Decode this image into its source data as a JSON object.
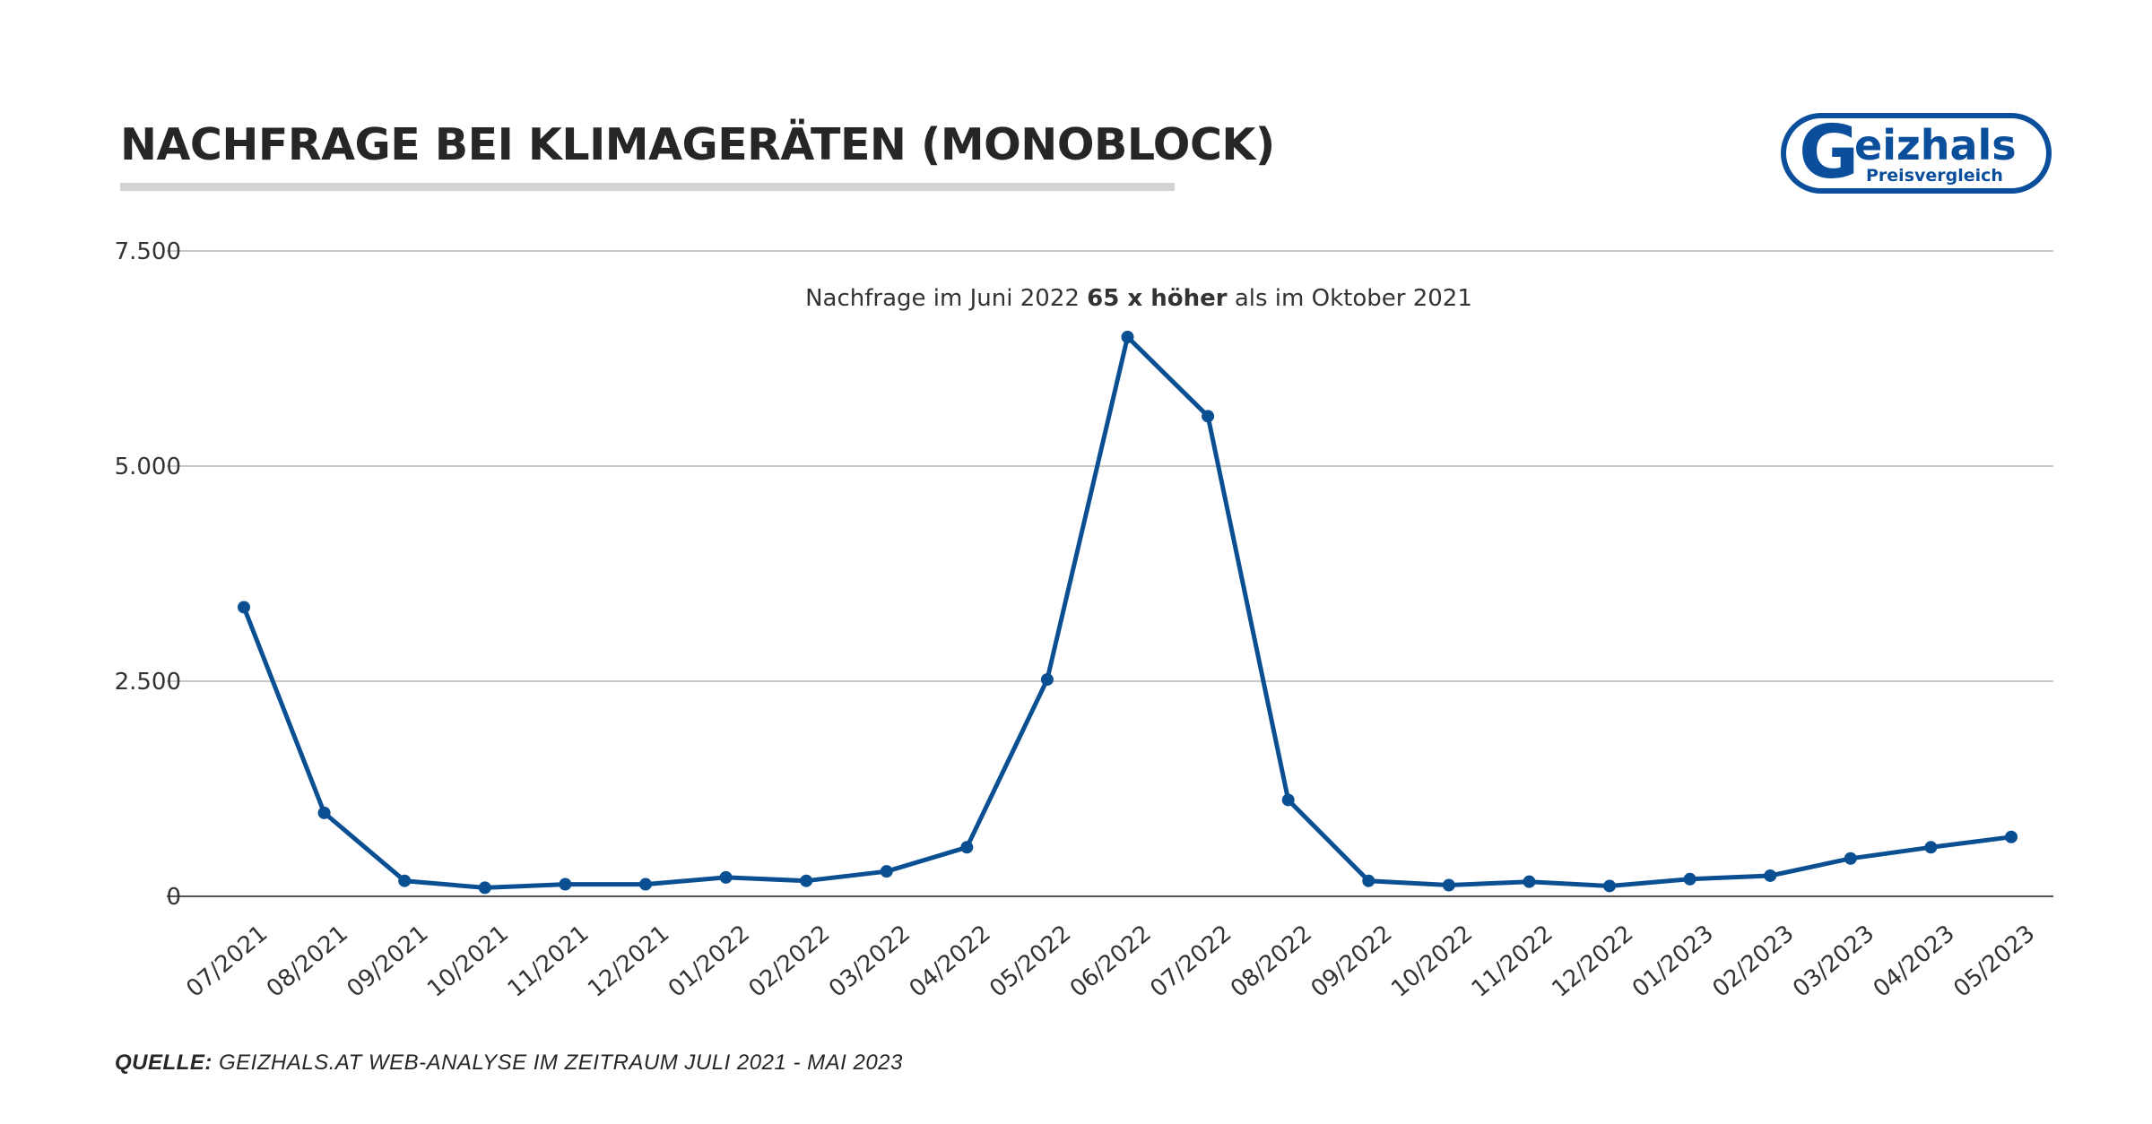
{
  "header": {
    "title": "NACHFRAGE BEI KLIMAGERÄTEN (MONOBLOCK)"
  },
  "logo": {
    "brand": "Geizhals",
    "tagline": "Preisvergleich",
    "color": "#0b4f9c",
    "icon": "geizhals-logo"
  },
  "chart_data": {
    "type": "line",
    "x": [
      "07/2021",
      "08/2021",
      "09/2021",
      "10/2021",
      "11/2021",
      "12/2021",
      "01/2022",
      "02/2022",
      "03/2022",
      "04/2022",
      "05/2022",
      "06/2022",
      "07/2022",
      "08/2022",
      "09/2022",
      "10/2022",
      "11/2022",
      "12/2022",
      "01/2023",
      "02/2023",
      "03/2023",
      "04/2023",
      "05/2023"
    ],
    "series": [
      {
        "values": [
          3360,
          970,
          180,
          100,
          140,
          140,
          220,
          180,
          290,
          570,
          2520,
          6500,
          5580,
          1120,
          180,
          130,
          170,
          120,
          200,
          240,
          440,
          570,
          690
        ],
        "color": "#0b4f93"
      }
    ],
    "ylim": [
      0,
      7500
    ],
    "yticks": [
      0,
      2500,
      5000,
      7500
    ],
    "ytick_labels": [
      "0",
      "2.500",
      "5.000",
      "7.500"
    ],
    "grid": true,
    "annotation": {
      "text_before": "Nachfrage im Juni 2022 ",
      "text_bold": "65 x höher",
      "text_after": " als im Oktober 2021"
    }
  },
  "footer": {
    "source_label": "QUELLE:",
    "source_text": " GEIZHALS.AT WEB-ANALYSE IM ZEITRAUM JULI 2021 - MAI 2023"
  }
}
